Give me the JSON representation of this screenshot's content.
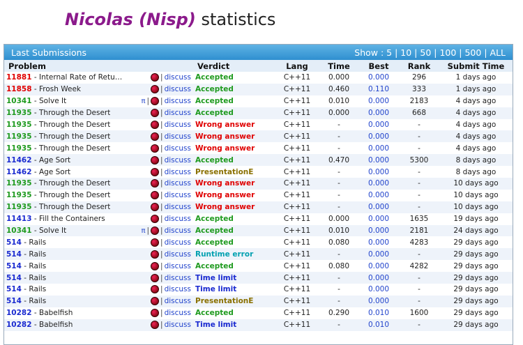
{
  "header": {
    "name": "Nicolas (Nisp)",
    "suffix": "statistics"
  },
  "panel": {
    "title": "Last Submissions",
    "show_label": "Show :",
    "show_options": [
      "5",
      "10",
      "50",
      "100",
      "500",
      "ALL"
    ]
  },
  "columns": {
    "problem": "Problem",
    "verdict": "Verdict",
    "lang": "Lang",
    "time": "Time",
    "best": "Best",
    "rank": "Rank",
    "submit": "Submit Time"
  },
  "discuss_label": "discuss",
  "pi_symbol": "π",
  "colors": {
    "Accepted": "#1e9a1e",
    "Wrong answer": "#e00000",
    "PresentationE": "#8a7000",
    "Runtime error": "#00a0b0",
    "Time limit": "#1a2ad0",
    "pid_red": "#e00000",
    "pid_green": "#1e9a1e",
    "pid_blue": "#1a2ad0"
  },
  "rows": [
    {
      "pid": "11881",
      "pidc": "pid_red",
      "name": "Internal Rate of Retu…",
      "pi": false,
      "verdict": "Accepted",
      "lang": "C++11",
      "time": "0.000",
      "best": "0.000",
      "rank": "296",
      "submit": "1 days ago"
    },
    {
      "pid": "11858",
      "pidc": "pid_red",
      "name": "Frosh Week",
      "pi": false,
      "verdict": "Accepted",
      "lang": "C++11",
      "time": "0.460",
      "best": "0.110",
      "rank": "333",
      "submit": "1 days ago"
    },
    {
      "pid": "10341",
      "pidc": "pid_green",
      "name": "Solve It",
      "pi": true,
      "verdict": "Accepted",
      "lang": "C++11",
      "time": "0.010",
      "best": "0.000",
      "rank": "2183",
      "submit": "4 days ago"
    },
    {
      "pid": "11935",
      "pidc": "pid_green",
      "name": "Through the Desert",
      "pi": false,
      "verdict": "Accepted",
      "lang": "C++11",
      "time": "0.000",
      "best": "0.000",
      "rank": "668",
      "submit": "4 days ago"
    },
    {
      "pid": "11935",
      "pidc": "pid_green",
      "name": "Through the Desert",
      "pi": false,
      "verdict": "Wrong answer",
      "lang": "C++11",
      "time": "-",
      "best": "0.000",
      "rank": "-",
      "submit": "4 days ago"
    },
    {
      "pid": "11935",
      "pidc": "pid_green",
      "name": "Through the Desert",
      "pi": false,
      "verdict": "Wrong answer",
      "lang": "C++11",
      "time": "-",
      "best": "0.000",
      "rank": "-",
      "submit": "4 days ago"
    },
    {
      "pid": "11935",
      "pidc": "pid_green",
      "name": "Through the Desert",
      "pi": false,
      "verdict": "Wrong answer",
      "lang": "C++11",
      "time": "-",
      "best": "0.000",
      "rank": "-",
      "submit": "4 days ago"
    },
    {
      "pid": "11462",
      "pidc": "pid_blue",
      "name": "Age Sort",
      "pi": false,
      "verdict": "Accepted",
      "lang": "C++11",
      "time": "0.470",
      "best": "0.000",
      "rank": "5300",
      "submit": "8 days ago"
    },
    {
      "pid": "11462",
      "pidc": "pid_blue",
      "name": "Age Sort",
      "pi": false,
      "verdict": "PresentationE",
      "lang": "C++11",
      "time": "-",
      "best": "0.000",
      "rank": "-",
      "submit": "8 days ago"
    },
    {
      "pid": "11935",
      "pidc": "pid_green",
      "name": "Through the Desert",
      "pi": false,
      "verdict": "Wrong answer",
      "lang": "C++11",
      "time": "-",
      "best": "0.000",
      "rank": "-",
      "submit": "10 days ago"
    },
    {
      "pid": "11935",
      "pidc": "pid_green",
      "name": "Through the Desert",
      "pi": false,
      "verdict": "Wrong answer",
      "lang": "C++11",
      "time": "-",
      "best": "0.000",
      "rank": "-",
      "submit": "10 days ago"
    },
    {
      "pid": "11935",
      "pidc": "pid_green",
      "name": "Through the Desert",
      "pi": false,
      "verdict": "Wrong answer",
      "lang": "C++11",
      "time": "-",
      "best": "0.000",
      "rank": "-",
      "submit": "10 days ago"
    },
    {
      "pid": "11413",
      "pidc": "pid_blue",
      "name": "Fill the Containers",
      "pi": false,
      "verdict": "Accepted",
      "lang": "C++11",
      "time": "0.000",
      "best": "0.000",
      "rank": "1635",
      "submit": "19 days ago"
    },
    {
      "pid": "10341",
      "pidc": "pid_green",
      "name": "Solve It",
      "pi": true,
      "verdict": "Accepted",
      "lang": "C++11",
      "time": "0.010",
      "best": "0.000",
      "rank": "2181",
      "submit": "24 days ago"
    },
    {
      "pid": "514",
      "pidc": "pid_blue",
      "name": "Rails",
      "pi": false,
      "verdict": "Accepted",
      "lang": "C++11",
      "time": "0.080",
      "best": "0.000",
      "rank": "4283",
      "submit": "29 days ago"
    },
    {
      "pid": "514",
      "pidc": "pid_blue",
      "name": "Rails",
      "pi": false,
      "verdict": "Runtime error",
      "lang": "C++11",
      "time": "-",
      "best": "0.000",
      "rank": "-",
      "submit": "29 days ago"
    },
    {
      "pid": "514",
      "pidc": "pid_blue",
      "name": "Rails",
      "pi": false,
      "verdict": "Accepted",
      "lang": "C++11",
      "time": "0.080",
      "best": "0.000",
      "rank": "4282",
      "submit": "29 days ago"
    },
    {
      "pid": "514",
      "pidc": "pid_blue",
      "name": "Rails",
      "pi": false,
      "verdict": "Time limit",
      "lang": "C++11",
      "time": "-",
      "best": "0.000",
      "rank": "-",
      "submit": "29 days ago"
    },
    {
      "pid": "514",
      "pidc": "pid_blue",
      "name": "Rails",
      "pi": false,
      "verdict": "Time limit",
      "lang": "C++11",
      "time": "-",
      "best": "0.000",
      "rank": "-",
      "submit": "29 days ago"
    },
    {
      "pid": "514",
      "pidc": "pid_blue",
      "name": "Rails",
      "pi": false,
      "verdict": "PresentationE",
      "lang": "C++11",
      "time": "-",
      "best": "0.000",
      "rank": "-",
      "submit": "29 days ago"
    },
    {
      "pid": "10282",
      "pidc": "pid_blue",
      "name": "Babelfish",
      "pi": false,
      "verdict": "Accepted",
      "lang": "C++11",
      "time": "0.290",
      "best": "0.010",
      "rank": "1600",
      "submit": "29 days ago"
    },
    {
      "pid": "10282",
      "pidc": "pid_blue",
      "name": "Babelfish",
      "pi": false,
      "verdict": "Time limit",
      "lang": "C++11",
      "time": "-",
      "best": "0.010",
      "rank": "-",
      "submit": "29 days ago"
    }
  ]
}
